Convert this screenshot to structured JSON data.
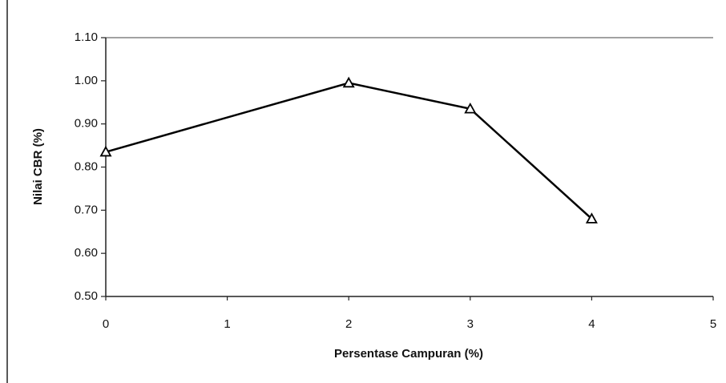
{
  "chart_data": {
    "type": "line",
    "x_label": "Persentase Campuran (%)",
    "y_label": "Nilai CBR (%)",
    "x": [
      0,
      2,
      3,
      4
    ],
    "values": [
      0.835,
      0.995,
      0.935,
      0.68
    ],
    "color": "#000000",
    "marker": "triangle",
    "xlim": [
      0,
      5
    ],
    "xticks": [
      0,
      1,
      2,
      3,
      4,
      5
    ],
    "ylim": [
      0.5,
      1.1
    ],
    "yticks": [
      {
        "value": 0.5,
        "label": "0.50"
      },
      {
        "value": 0.6,
        "label": "0.60"
      },
      {
        "value": 0.7,
        "label": "0.70"
      },
      {
        "value": 0.8,
        "label": "0.80"
      },
      {
        "value": 0.9,
        "label": "0.90"
      },
      {
        "value": 1.0,
        "label": "1.00"
      },
      {
        "value": 1.1,
        "label": "1.10"
      }
    ],
    "grid": false
  }
}
